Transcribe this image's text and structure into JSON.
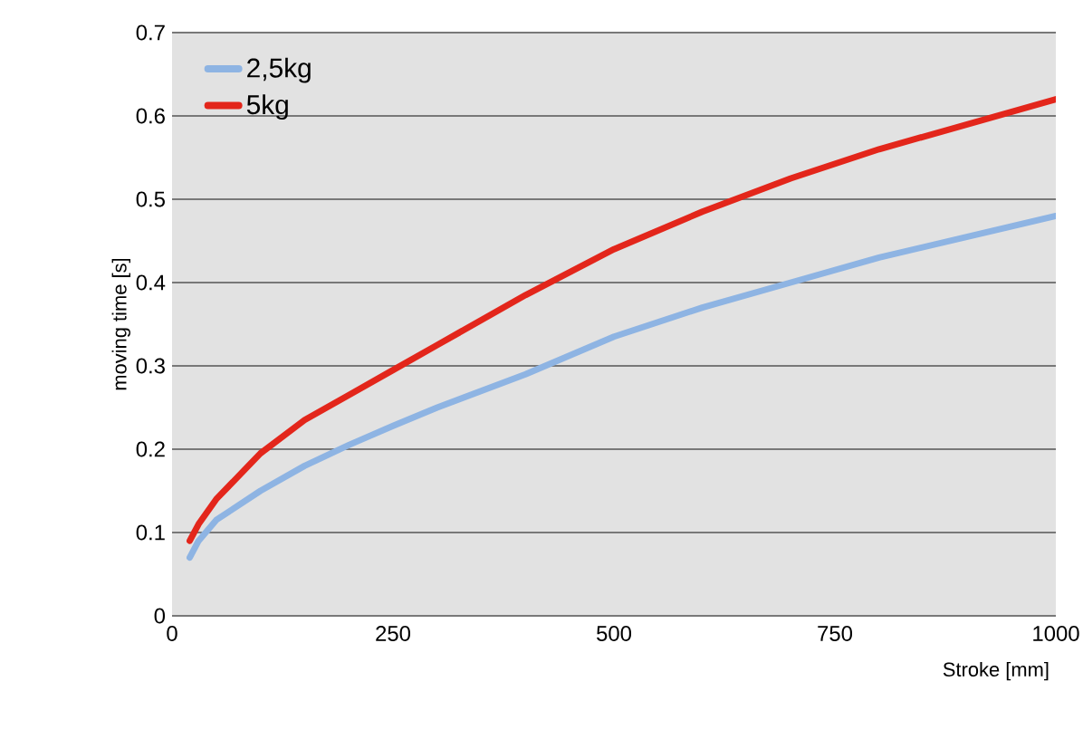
{
  "chart_data": {
    "type": "line",
    "xlabel": "Stroke [mm]",
    "ylabel": "moving time [s]",
    "xlim": [
      0,
      1000
    ],
    "xticks": [
      0,
      250,
      500,
      750,
      1000
    ],
    "ylim": [
      0,
      0.7
    ],
    "yticks": [
      0,
      0.1,
      0.2,
      0.3,
      0.4,
      0.5,
      0.6,
      0.7
    ],
    "grid": "y",
    "legend": "top left",
    "marker": "none",
    "line_style": "solid",
    "series": [
      {
        "name": "2,5kg",
        "color": "#8eb4e3",
        "x": [
          20,
          30,
          50,
          100,
          150,
          200,
          250,
          300,
          400,
          500,
          600,
          700,
          800,
          900,
          1000
        ],
        "values": [
          0.07,
          0.09,
          0.115,
          0.15,
          0.18,
          0.205,
          0.228,
          0.25,
          0.29,
          0.335,
          0.37,
          0.4,
          0.43,
          0.455,
          0.48
        ]
      },
      {
        "name": "5kg",
        "color": "#e3261b",
        "x": [
          20,
          30,
          50,
          100,
          150,
          200,
          250,
          300,
          400,
          500,
          600,
          700,
          800,
          900,
          1000
        ],
        "values": [
          0.09,
          0.11,
          0.14,
          0.195,
          0.235,
          0.265,
          0.295,
          0.325,
          0.385,
          0.44,
          0.485,
          0.525,
          0.56,
          0.59,
          0.62
        ]
      }
    ]
  }
}
